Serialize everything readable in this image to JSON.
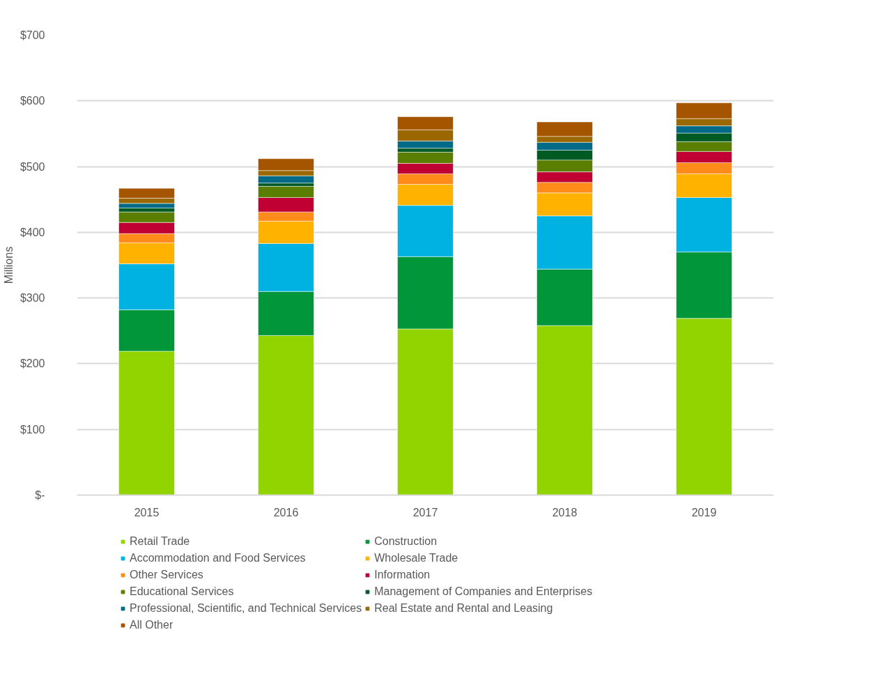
{
  "chart_data": {
    "type": "bar",
    "stacked": true,
    "ylabel": "Millions",
    "categories": [
      "2015",
      "2016",
      "2017",
      "2018",
      "2019"
    ],
    "ylim": [
      0,
      700
    ],
    "yticks": [
      {
        "value": 0,
        "label": "$-"
      },
      {
        "value": 100,
        "label": "$100"
      },
      {
        "value": 200,
        "label": "$200"
      },
      {
        "value": 300,
        "label": "$300"
      },
      {
        "value": 400,
        "label": "$400"
      },
      {
        "value": 500,
        "label": "$500"
      },
      {
        "value": 600,
        "label": "$600"
      },
      {
        "value": 700,
        "label": "$700"
      }
    ],
    "grid": "y",
    "legend": "bottom",
    "series": [
      {
        "name": "Retail Trade",
        "color": "#92d400",
        "values": [
          219,
          243,
          253,
          258,
          269
        ]
      },
      {
        "name": "Construction",
        "color": "#009639",
        "values": [
          63,
          67,
          110,
          86,
          101
        ]
      },
      {
        "name": "Accommodation and Food Services",
        "color": "#00b2e2",
        "values": [
          70,
          73,
          78,
          81,
          83
        ]
      },
      {
        "name": "Wholesale Trade",
        "color": "#ffb300",
        "values": [
          32,
          34,
          32,
          35,
          36
        ]
      },
      {
        "name": "Other Services",
        "color": "#ff8c1a",
        "values": [
          14,
          14,
          16,
          16,
          17
        ]
      },
      {
        "name": "Information",
        "color": "#c00033",
        "values": [
          17,
          22,
          16,
          16,
          17
        ]
      },
      {
        "name": "Educational Services",
        "color": "#5a7f00",
        "values": [
          16,
          17,
          17,
          18,
          15
        ]
      },
      {
        "name": "Management of Companies and Enterprises",
        "color": "#005a24",
        "values": [
          6,
          5,
          6,
          15,
          13
        ]
      },
      {
        "name": "Professional, Scientific, and Technical Services",
        "color": "#006a87",
        "values": [
          7,
          11,
          11,
          12,
          11
        ]
      },
      {
        "name": "Real Estate and Rental and Leasing",
        "color": "#9b6800",
        "values": [
          8,
          8,
          17,
          9,
          11
        ]
      },
      {
        "name": "All Other",
        "color": "#a55500",
        "values": [
          15,
          18,
          20,
          22,
          24
        ]
      }
    ]
  }
}
